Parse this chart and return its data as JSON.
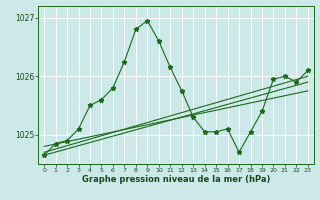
{
  "xlabel": "Graphe pression niveau de la mer (hPa)",
  "bg_color": "#cce8e8",
  "grid_color": "#ffffff",
  "line_color": "#1a6b1a",
  "xlim": [
    -0.5,
    23.5
  ],
  "ylim": [
    1024.5,
    1027.2
  ],
  "yticks": [
    1025,
    1026,
    1027
  ],
  "xticks": [
    0,
    1,
    2,
    3,
    4,
    5,
    6,
    7,
    8,
    9,
    10,
    11,
    12,
    13,
    14,
    15,
    16,
    17,
    18,
    19,
    20,
    21,
    22,
    23
  ],
  "series": {
    "main": {
      "x": [
        0,
        1,
        2,
        3,
        4,
        5,
        6,
        7,
        8,
        9,
        10,
        11,
        12,
        13,
        14,
        15,
        16,
        17,
        18,
        19,
        20,
        21,
        22,
        23
      ],
      "y": [
        1024.65,
        1024.85,
        1024.9,
        1025.1,
        1025.5,
        1025.6,
        1025.8,
        1026.25,
        1026.8,
        1026.95,
        1026.6,
        1026.15,
        1025.75,
        1025.3,
        1025.05,
        1025.05,
        1025.1,
        1024.7,
        1025.05,
        1025.4,
        1025.95,
        1026.0,
        1025.9,
        1026.1
      ]
    },
    "line2": {
      "x": [
        0,
        23
      ],
      "y": [
        1024.65,
        1025.9
      ]
    },
    "line3": {
      "x": [
        0,
        23
      ],
      "y": [
        1024.7,
        1026.0
      ]
    },
    "line4": {
      "x": [
        0,
        23
      ],
      "y": [
        1024.8,
        1025.75
      ]
    }
  }
}
